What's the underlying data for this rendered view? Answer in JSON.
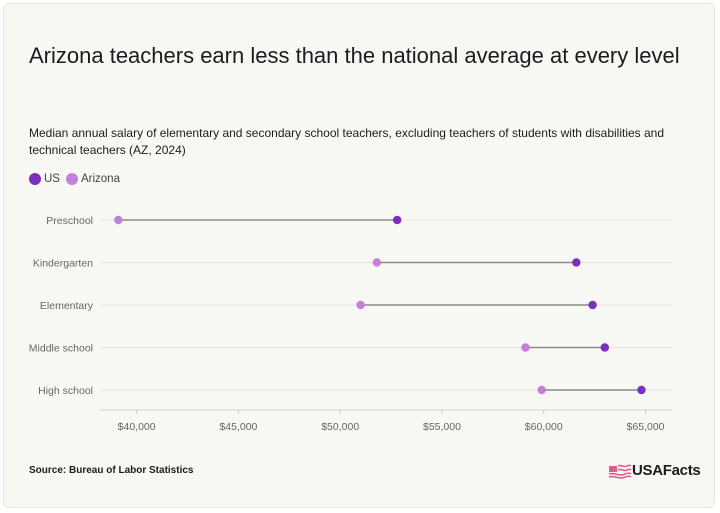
{
  "title": "Arizona teachers earn less than the national average at every level",
  "subtitle": "Median annual salary of elementary and secondary school teachers, excluding teachers of students with disabilities and technical teachers (AZ, 2024)",
  "legend": [
    {
      "label": "US",
      "color": "#7b2fbe"
    },
    {
      "label": "Arizona",
      "color": "#c47fdb"
    }
  ],
  "chart_data": {
    "type": "dumbbell",
    "categories": [
      "Preschool",
      "Kindergarten",
      "Elementary",
      "Middle school",
      "High school"
    ],
    "series": [
      {
        "name": "US",
        "values": [
          52800,
          61600,
          62400,
          63000,
          64800
        ],
        "color": "#7b2fbe"
      },
      {
        "name": "Arizona",
        "values": [
          39100,
          51800,
          51000,
          59100,
          59900
        ],
        "color": "#c47fdb"
      }
    ],
    "x_ticks": [
      {
        "value": 40000,
        "label": "$40,000"
      },
      {
        "value": 45000,
        "label": "$45,000"
      },
      {
        "value": 50000,
        "label": "$50,000"
      },
      {
        "value": 55000,
        "label": "$55,000"
      },
      {
        "value": 60000,
        "label": "$60,000"
      },
      {
        "value": 65000,
        "label": "$65,000"
      }
    ],
    "xlim": [
      38200,
      66300
    ],
    "connector_color": "#8a8a8a",
    "grid": true,
    "legend_position": "top-left"
  },
  "footer": {
    "source": "Source: Bureau of Labor Statistics",
    "brand": "USAFacts",
    "brand_icon": "usafacts-flag-icon"
  }
}
